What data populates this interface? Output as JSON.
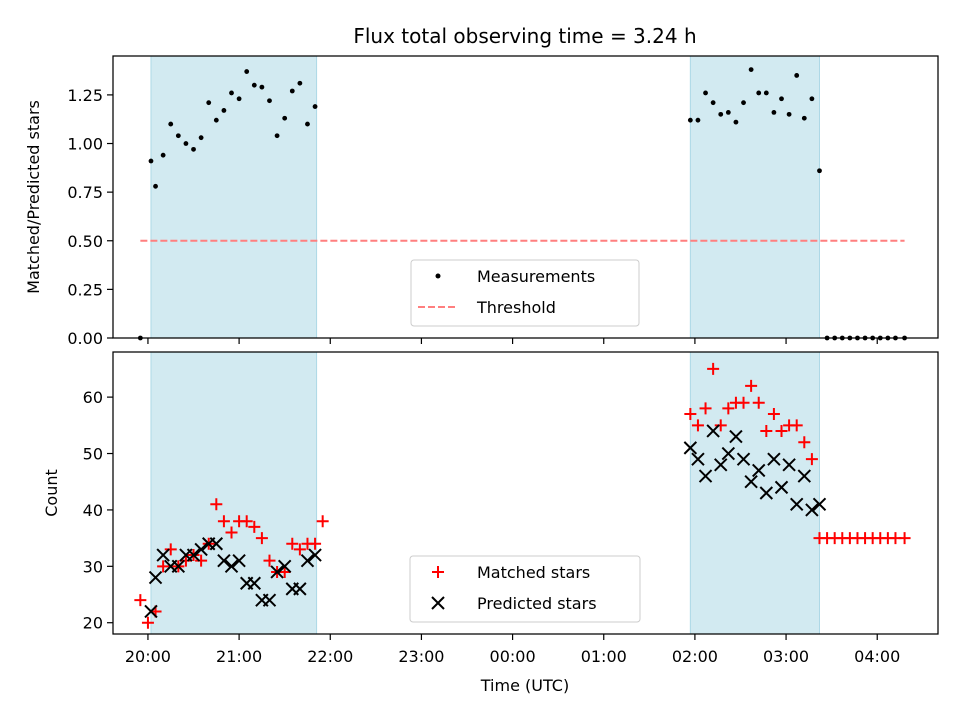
{
  "chart_data": [
    {
      "type": "scatter",
      "title": "Flux total observing time = 3.24 h",
      "ylabel": "Matched/Predicted stars",
      "xlim": [
        "19:37",
        "04:40"
      ],
      "ylim": [
        0,
        1.45
      ],
      "y_ticks": [
        "0.00",
        "0.25",
        "0.50",
        "0.75",
        "1.00",
        "1.25"
      ],
      "shaded_intervals": [
        [
          "20:02",
          "21:51"
        ],
        [
          "01:57",
          "03:22"
        ]
      ],
      "threshold": {
        "value": 0.5,
        "x_range": [
          "19:55",
          "04:18"
        ]
      },
      "series": [
        {
          "name": "Measurements",
          "points": [
            [
              "19:55",
              0.0
            ],
            [
              "20:02",
              0.91
            ],
            [
              "20:05",
              0.78
            ],
            [
              "20:10",
              0.94
            ],
            [
              "20:15",
              1.1
            ],
            [
              "20:20",
              1.04
            ],
            [
              "20:25",
              1.0
            ],
            [
              "20:30",
              0.97
            ],
            [
              "20:35",
              1.03
            ],
            [
              "20:40",
              1.21
            ],
            [
              "20:45",
              1.12
            ],
            [
              "20:50",
              1.17
            ],
            [
              "20:55",
              1.26
            ],
            [
              "21:00",
              1.23
            ],
            [
              "21:05",
              1.37
            ],
            [
              "21:10",
              1.3
            ],
            [
              "21:15",
              1.29
            ],
            [
              "21:20",
              1.22
            ],
            [
              "21:25",
              1.04
            ],
            [
              "21:30",
              1.13
            ],
            [
              "21:35",
              1.27
            ],
            [
              "21:40",
              1.31
            ],
            [
              "21:45",
              1.1
            ],
            [
              "21:50",
              1.19
            ],
            [
              "01:57",
              1.12
            ],
            [
              "02:02",
              1.12
            ],
            [
              "02:07",
              1.26
            ],
            [
              "02:12",
              1.21
            ],
            [
              "02:17",
              1.15
            ],
            [
              "02:22",
              1.16
            ],
            [
              "02:27",
              1.11
            ],
            [
              "02:32",
              1.21
            ],
            [
              "02:37",
              1.38
            ],
            [
              "02:42",
              1.26
            ],
            [
              "02:47",
              1.26
            ],
            [
              "02:52",
              1.16
            ],
            [
              "02:57",
              1.23
            ],
            [
              "03:02",
              1.15
            ],
            [
              "03:07",
              1.35
            ],
            [
              "03:12",
              1.13
            ],
            [
              "03:17",
              1.23
            ],
            [
              "03:22",
              0.86
            ],
            [
              "03:27",
              0.0
            ],
            [
              "03:32",
              0.0
            ],
            [
              "03:37",
              0.0
            ],
            [
              "03:42",
              0.0
            ],
            [
              "03:47",
              0.0
            ],
            [
              "03:52",
              0.0
            ],
            [
              "03:57",
              0.0
            ],
            [
              "04:02",
              0.0
            ],
            [
              "04:07",
              0.0
            ],
            [
              "04:12",
              0.0
            ],
            [
              "04:18",
              0.0
            ]
          ]
        },
        {
          "name": "Threshold",
          "style": "dashed"
        }
      ],
      "legend_position": "lower center"
    },
    {
      "type": "scatter",
      "xlabel": "Time (UTC)",
      "ylabel": "Count",
      "xlim": [
        "19:37",
        "04:40"
      ],
      "ylim": [
        18,
        68
      ],
      "y_ticks": [
        "20",
        "30",
        "40",
        "50",
        "60"
      ],
      "x_ticks": [
        "20:00",
        "21:00",
        "22:00",
        "23:00",
        "00:00",
        "01:00",
        "02:00",
        "03:00",
        "04:00"
      ],
      "shaded_intervals": [
        [
          "20:02",
          "21:51"
        ],
        [
          "01:57",
          "03:22"
        ]
      ],
      "series": [
        {
          "name": "Matched stars",
          "marker": "+",
          "points": [
            [
              "19:55",
              24
            ],
            [
              "20:00",
              20
            ],
            [
              "20:05",
              22
            ],
            [
              "20:10",
              30
            ],
            [
              "20:15",
              33
            ],
            [
              "20:20",
              30
            ],
            [
              "20:25",
              31
            ],
            [
              "20:30",
              32
            ],
            [
              "20:35",
              31
            ],
            [
              "20:40",
              34
            ],
            [
              "20:45",
              41
            ],
            [
              "20:50",
              38
            ],
            [
              "20:55",
              36
            ],
            [
              "21:00",
              38
            ],
            [
              "21:05",
              38
            ],
            [
              "21:10",
              37
            ],
            [
              "21:15",
              35
            ],
            [
              "21:20",
              31
            ],
            [
              "21:25",
              29
            ],
            [
              "21:30",
              29
            ],
            [
              "21:35",
              34
            ],
            [
              "21:40",
              33
            ],
            [
              "21:45",
              34
            ],
            [
              "21:50",
              34
            ],
            [
              "21:55",
              38
            ],
            [
              "01:57",
              57
            ],
            [
              "02:02",
              55
            ],
            [
              "02:07",
              58
            ],
            [
              "02:12",
              65
            ],
            [
              "02:17",
              55
            ],
            [
              "02:22",
              58
            ],
            [
              "02:27",
              59
            ],
            [
              "02:32",
              59
            ],
            [
              "02:37",
              62
            ],
            [
              "02:42",
              59
            ],
            [
              "02:47",
              54
            ],
            [
              "02:52",
              57
            ],
            [
              "02:57",
              54
            ],
            [
              "03:02",
              55
            ],
            [
              "03:07",
              55
            ],
            [
              "03:12",
              52
            ],
            [
              "03:17",
              49
            ],
            [
              "03:22",
              35
            ],
            [
              "03:27",
              35
            ],
            [
              "03:32",
              35
            ],
            [
              "03:37",
              35
            ],
            [
              "03:42",
              35
            ],
            [
              "03:47",
              35
            ],
            [
              "03:52",
              35
            ],
            [
              "03:57",
              35
            ],
            [
              "04:02",
              35
            ],
            [
              "04:07",
              35
            ],
            [
              "04:12",
              35
            ],
            [
              "04:18",
              35
            ]
          ]
        },
        {
          "name": "Predicted stars",
          "marker": "x",
          "points": [
            [
              "20:02",
              22
            ],
            [
              "20:05",
              28
            ],
            [
              "20:10",
              32
            ],
            [
              "20:15",
              30
            ],
            [
              "20:20",
              30
            ],
            [
              "20:25",
              32
            ],
            [
              "20:30",
              32
            ],
            [
              "20:35",
              33
            ],
            [
              "20:40",
              34
            ],
            [
              "20:45",
              34
            ],
            [
              "20:50",
              31
            ],
            [
              "20:55",
              30
            ],
            [
              "21:00",
              31
            ],
            [
              "21:05",
              27
            ],
            [
              "21:10",
              27
            ],
            [
              "21:15",
              24
            ],
            [
              "21:20",
              24
            ],
            [
              "21:25",
              29
            ],
            [
              "21:30",
              30
            ],
            [
              "21:35",
              26
            ],
            [
              "21:40",
              26
            ],
            [
              "21:45",
              31
            ],
            [
              "21:50",
              32
            ],
            [
              "01:57",
              51
            ],
            [
              "02:02",
              49
            ],
            [
              "02:07",
              46
            ],
            [
              "02:12",
              54
            ],
            [
              "02:17",
              48
            ],
            [
              "02:22",
              50
            ],
            [
              "02:27",
              53
            ],
            [
              "02:32",
              49
            ],
            [
              "02:37",
              45
            ],
            [
              "02:42",
              47
            ],
            [
              "02:47",
              43
            ],
            [
              "02:52",
              49
            ],
            [
              "02:57",
              44
            ],
            [
              "03:02",
              48
            ],
            [
              "03:07",
              41
            ],
            [
              "03:12",
              46
            ],
            [
              "03:17",
              40
            ],
            [
              "03:22",
              41
            ]
          ]
        }
      ],
      "legend_position": "lower center"
    }
  ],
  "colors": {
    "shade": "#add8e6",
    "measurement": "#000000",
    "threshold": "#ff7f7f",
    "matched": "#ff0000",
    "predicted": "#000000"
  }
}
